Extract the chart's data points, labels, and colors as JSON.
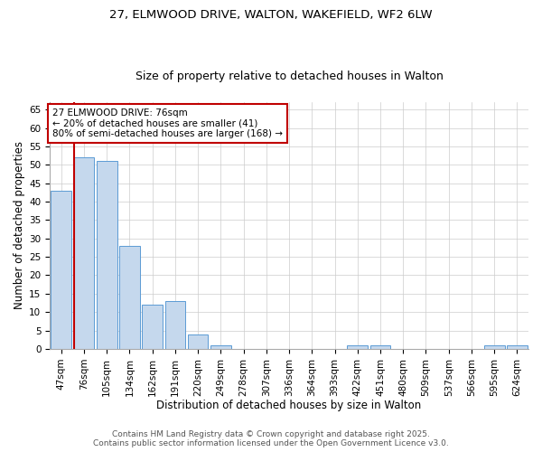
{
  "title_line1": "27, ELMWOOD DRIVE, WALTON, WAKEFIELD, WF2 6LW",
  "title_line2": "Size of property relative to detached houses in Walton",
  "xlabel": "Distribution of detached houses by size in Walton",
  "ylabel": "Number of detached properties",
  "categories": [
    "47sqm",
    "76sqm",
    "105sqm",
    "134sqm",
    "162sqm",
    "191sqm",
    "220sqm",
    "249sqm",
    "278sqm",
    "307sqm",
    "336sqm",
    "364sqm",
    "393sqm",
    "422sqm",
    "451sqm",
    "480sqm",
    "509sqm",
    "537sqm",
    "566sqm",
    "595sqm",
    "624sqm"
  ],
  "values": [
    43,
    52,
    51,
    28,
    12,
    13,
    4,
    1,
    0,
    0,
    0,
    0,
    0,
    1,
    1,
    0,
    0,
    0,
    0,
    1,
    1
  ],
  "bar_color": "#c5d8ed",
  "bar_edgecolor": "#5b9bd5",
  "highlight_index": 1,
  "highlight_color": "#c00000",
  "ylim": [
    0,
    67
  ],
  "yticks": [
    0,
    5,
    10,
    15,
    20,
    25,
    30,
    35,
    40,
    45,
    50,
    55,
    60,
    65
  ],
  "annotation_text": "27 ELMWOOD DRIVE: 76sqm\n← 20% of detached houses are smaller (41)\n80% of semi-detached houses are larger (168) →",
  "annotation_box_color": "#ffffff",
  "annotation_box_edgecolor": "#c00000",
  "footer_line1": "Contains HM Land Registry data © Crown copyright and database right 2025.",
  "footer_line2": "Contains public sector information licensed under the Open Government Licence v3.0.",
  "bg_color": "#ffffff",
  "grid_color": "#cccccc",
  "title_fontsize": 9.5,
  "subtitle_fontsize": 9,
  "axis_label_fontsize": 8.5,
  "tick_fontsize": 7.5,
  "annotation_fontsize": 7.5,
  "footer_fontsize": 6.5
}
